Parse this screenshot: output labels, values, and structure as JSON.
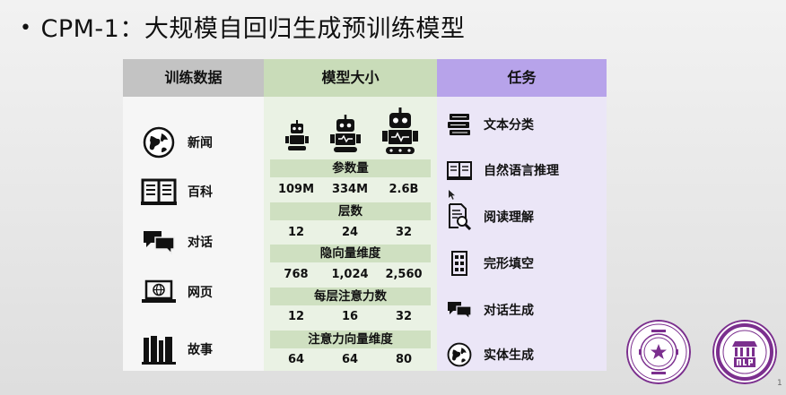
{
  "slide": {
    "title": "CPM-1：大规模自回归生成预训练模型",
    "page_number": "1"
  },
  "columns": {
    "data": {
      "header": "训练数据",
      "items": [
        {
          "label": "新闻",
          "icon": "globe-icon"
        },
        {
          "label": "百科",
          "icon": "open-book-icon"
        },
        {
          "label": "对话",
          "icon": "chat-bubbles-icon"
        },
        {
          "label": "网页",
          "icon": "laptop-globe-icon"
        },
        {
          "label": "故事",
          "icon": "books-icon"
        }
      ]
    },
    "model": {
      "header": "模型大小",
      "robot_icons": [
        "robot-small-icon",
        "robot-medium-icon",
        "robot-large-icon"
      ],
      "rows": [
        {
          "label": "参数量",
          "values": [
            "109M",
            "334M",
            "2.6B"
          ]
        },
        {
          "label": "层数",
          "values": [
            "12",
            "24",
            "32"
          ]
        },
        {
          "label": "隐向量维度",
          "values": [
            "768",
            "1,024",
            "2,560"
          ]
        },
        {
          "label": "每层注意力数",
          "values": [
            "12",
            "16",
            "32"
          ]
        },
        {
          "label": "注意力向量维度",
          "values": [
            "64",
            "64",
            "80"
          ]
        }
      ]
    },
    "task": {
      "header": "任务",
      "items": [
        {
          "label": "文本分类",
          "icon": "stacked-books-icon"
        },
        {
          "label": "自然语言推理",
          "icon": "open-book-icon"
        },
        {
          "label": "阅读理解",
          "icon": "document-search-icon"
        },
        {
          "label": "完形填空",
          "icon": "form-boxes-icon"
        },
        {
          "label": "对话生成",
          "icon": "chat-bubbles-icon"
        },
        {
          "label": "实体生成",
          "icon": "globe-icon"
        }
      ]
    }
  },
  "logos": [
    "tsinghua-university-seal-icon",
    "thunlp-logo-icon"
  ],
  "colors": {
    "data_header": "#c3c3c3",
    "model_header": "#c9dcb9",
    "task_header": "#b7a3ea",
    "logo_purple": "#7b2f8e"
  }
}
